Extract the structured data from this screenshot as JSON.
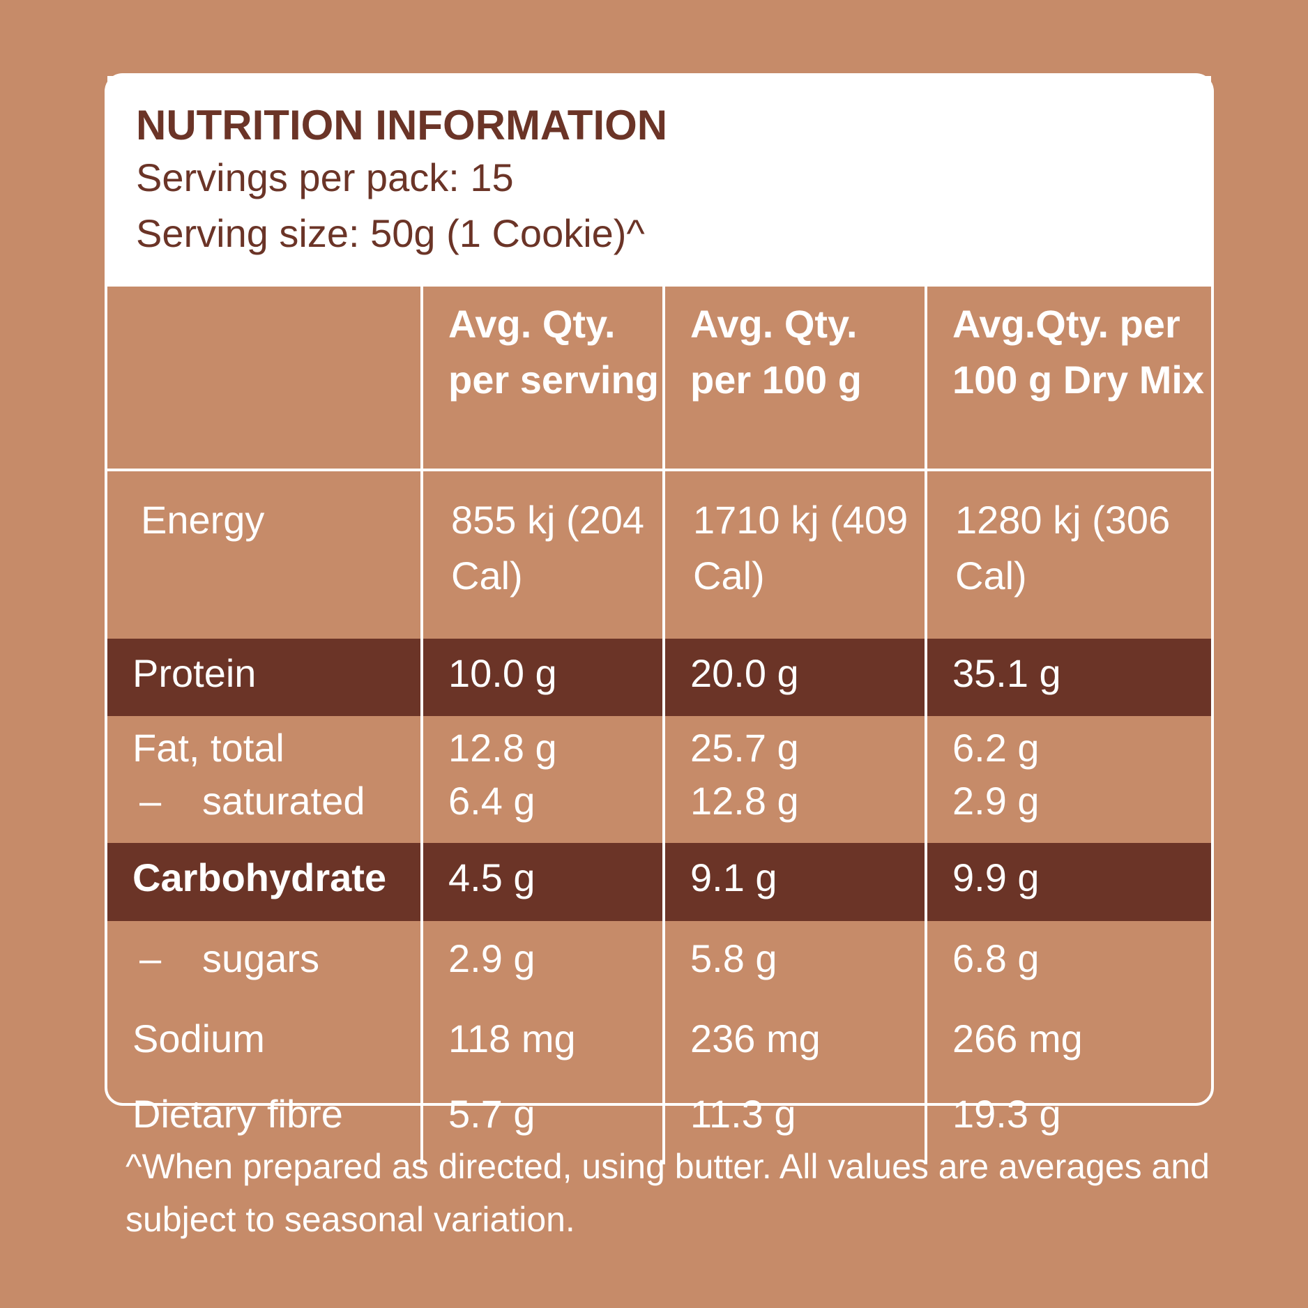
{
  "title": "NUTRITION INFORMATION",
  "servings_per_pack": "Servings per pack: 15",
  "serving_size": "Serving size: 50g (1 Cookie)^",
  "columns": [
    "",
    "Avg. Qty. per serving",
    "Avg. Qty. per 100 g",
    "Avg.Qty. per 100 g Dry Mix"
  ],
  "rows": [
    {
      "label": "Energy",
      "values": [
        "855 kj (204 Cal)",
        "1710 kj (409 Cal)",
        "1280 kj (306 Cal)"
      ]
    },
    {
      "label": "Protein",
      "values": [
        "10.0 g",
        "20.0 g",
        "35.1 g"
      ]
    },
    {
      "label": "Fat, total",
      "values": [
        "12.8 g",
        "25.7 g",
        "6.2 g"
      ]
    },
    {
      "label": "saturated",
      "values": [
        "6.4 g",
        "12.8 g",
        "2.9 g"
      ]
    },
    {
      "label": "Carbohydrate",
      "values": [
        "4.5 g",
        "9.1 g",
        "9.9 g"
      ]
    },
    {
      "label": "sugars",
      "values": [
        "2.9 g",
        "5.8 g",
        "6.8 g"
      ]
    },
    {
      "label": "Sodium",
      "values": [
        "118 mg",
        "236 mg",
        "266 mg"
      ]
    },
    {
      "label": "Dietary fibre",
      "values": [
        "5.7 g",
        "11.3 g",
        "19.3 g"
      ]
    }
  ],
  "dash": "–",
  "footnote": "^When prepared as directed, using butter. All values are averages and subject to seasonal variation.",
  "colors": {
    "background": "#C68B69",
    "dark_row": "#6B3427",
    "title": "#6B3427"
  }
}
